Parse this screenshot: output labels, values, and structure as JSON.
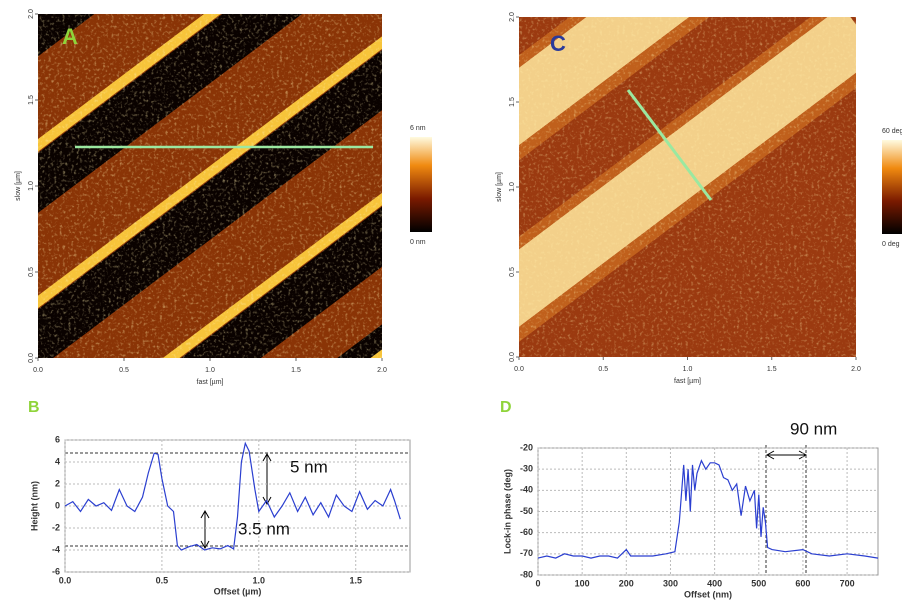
{
  "chart_data": [
    {
      "type": "image",
      "label": "A",
      "xlabel": "fast [µm]",
      "ylabel": "slow [µm]",
      "xlim": [
        0,
        2
      ],
      "ylim": [
        0,
        2
      ],
      "xticks": [
        {
          "value": 0,
          "label": "0.0"
        },
        {
          "value": 0.5,
          "label": "0.5"
        },
        {
          "value": 1,
          "label": "1.0"
        },
        {
          "value": 1.5,
          "label": "1.5"
        },
        {
          "value": 2,
          "label": "2.0"
        }
      ],
      "yticks": [
        {
          "value": 0,
          "label": "0.0"
        },
        {
          "value": 0.5,
          "label": "0.5"
        },
        {
          "value": 1,
          "label": "1.0"
        },
        {
          "value": 1.5,
          "label": "1.5"
        },
        {
          "value": 2,
          "label": "2.0"
        }
      ],
      "colorbar_labels": [
        "6 nm",
        "0 nm"
      ],
      "label_color": "#8fd43a"
    },
    {
      "type": "image",
      "label": "C",
      "xlabel": "fast [µm]",
      "ylabel": "slow [µm]",
      "xlim": [
        0,
        2
      ],
      "ylim": [
        0,
        2
      ],
      "xticks": [
        {
          "value": 0,
          "label": "0.0"
        },
        {
          "value": 0.5,
          "label": "0.5"
        },
        {
          "value": 1,
          "label": "1.0"
        },
        {
          "value": 1.5,
          "label": "1.5"
        },
        {
          "value": 2,
          "label": "2.0"
        }
      ],
      "yticks": [
        {
          "value": 0,
          "label": "0.0"
        },
        {
          "value": 0.5,
          "label": "0.5"
        },
        {
          "value": 1,
          "label": "1.0"
        },
        {
          "value": 1.5,
          "label": "1.5"
        },
        {
          "value": 2,
          "label": "2.0"
        }
      ],
      "colorbar_labels": [
        "60 deg",
        "0 deg"
      ],
      "label_color": "#2a3a9a"
    },
    {
      "type": "line",
      "label": "B",
      "xlabel": "Offset (µm)",
      "ylabel": "Height (nm)",
      "color": "#2b3fd0",
      "xlim": [
        0,
        1.78
      ],
      "ylim": [
        -6,
        6
      ],
      "xticks": [
        {
          "value": 0,
          "label": "0.0"
        },
        {
          "value": 0.5,
          "label": "0.5"
        },
        {
          "value": 1,
          "label": "1.0"
        },
        {
          "value": 1.5,
          "label": "1.5"
        }
      ],
      "yticks": [
        -6,
        -4,
        -2,
        0,
        2,
        4,
        6
      ],
      "grid": true,
      "annotations": [
        "5 nm",
        "3.5 nm"
      ],
      "label_color": "#8fd43a",
      "x": [
        0,
        0.04,
        0.08,
        0.12,
        0.16,
        0.2,
        0.24,
        0.28,
        0.32,
        0.36,
        0.4,
        0.43,
        0.46,
        0.48,
        0.5,
        0.53,
        0.56,
        0.58,
        0.6,
        0.64,
        0.68,
        0.72,
        0.76,
        0.8,
        0.84,
        0.87,
        0.89,
        0.91,
        0.93,
        0.95,
        0.98,
        1.0,
        1.04,
        1.08,
        1.12,
        1.16,
        1.2,
        1.24,
        1.28,
        1.32,
        1.36,
        1.4,
        1.44,
        1.48,
        1.52,
        1.56,
        1.6,
        1.64,
        1.68,
        1.7,
        1.73
      ],
      "values": [
        0,
        0.4,
        -0.5,
        0.6,
        0,
        0.3,
        -0.4,
        1.5,
        0,
        -0.5,
        0.8,
        3,
        4.8,
        4.7,
        2.5,
        0,
        -0.5,
        -3.6,
        -4,
        -3.7,
        -3.5,
        -4,
        -3.8,
        -3.9,
        -3.6,
        -3.9,
        -1,
        4,
        5.7,
        5,
        1.5,
        -0.5,
        0.5,
        -1,
        0,
        1.2,
        -0.5,
        0.8,
        -0.8,
        0.3,
        -1,
        1,
        0,
        -0.5,
        1.3,
        -0.3,
        0.5,
        0,
        1.5,
        0.5,
        -1.2
      ]
    },
    {
      "type": "line",
      "label": "D",
      "xlabel": "Offset (nm)",
      "ylabel": "Lock-in phase (deg)",
      "color": "#2b3fd0",
      "xlim": [
        0,
        770
      ],
      "ylim": [
        -80,
        -20
      ],
      "xticks": [
        0,
        100,
        200,
        300,
        400,
        500,
        600,
        700
      ],
      "yticks": [
        -80,
        -70,
        -60,
        -50,
        -40,
        -30,
        -20
      ],
      "grid": true,
      "annotations": [
        "90 nm"
      ],
      "label_color": "#8fd43a",
      "x": [
        0,
        20,
        40,
        60,
        80,
        100,
        120,
        140,
        160,
        180,
        200,
        210,
        230,
        260,
        290,
        310,
        320,
        330,
        335,
        340,
        345,
        350,
        355,
        360,
        370,
        380,
        390,
        400,
        410,
        420,
        430,
        440,
        450,
        460,
        470,
        480,
        490,
        495,
        500,
        505,
        510,
        515,
        520,
        530,
        560,
        600,
        620,
        660,
        700,
        740,
        770
      ],
      "values": [
        -72,
        -71,
        -72,
        -70,
        -71,
        -71,
        -72,
        -71,
        -71,
        -72,
        -68,
        -71,
        -71,
        -71,
        -70,
        -69,
        -55,
        -28,
        -45,
        -30,
        -50,
        -28,
        -40,
        -32,
        -26,
        -30,
        -27,
        -27,
        -28,
        -34,
        -35,
        -40,
        -37,
        -52,
        -38,
        -45,
        -40,
        -58,
        -42,
        -62,
        -48,
        -55,
        -67,
        -68,
        -69,
        -68,
        -70,
        -71,
        -70,
        -71,
        -72
      ]
    }
  ]
}
